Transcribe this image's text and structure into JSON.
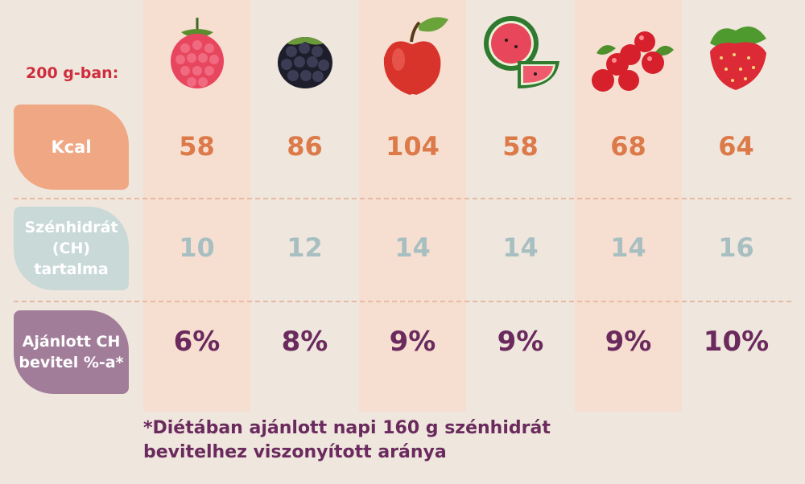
{
  "per_label": "200 g-ban:",
  "row_labels": {
    "kcal": "Kcal",
    "ch": "Szénhidrát\n(CH)\ntartalma",
    "pct": "Ajánlott CH\nbevitel %-a*"
  },
  "colors": {
    "kcal": "#dc7a49",
    "ch": "#a8bfc2",
    "pct": "#6a2a5d",
    "kcal_box": "#f0a884",
    "ch_box": "#c9d9d8",
    "pct_box": "#a27d9a",
    "highlight_column": "#f6dfd1",
    "background": "#efe6dd"
  },
  "fruits": [
    {
      "icon": "raspberry-icon",
      "kcal": "58",
      "ch": "10",
      "pct": "6%"
    },
    {
      "icon": "blackberry-icon",
      "kcal": "86",
      "ch": "12",
      "pct": "8%"
    },
    {
      "icon": "apple-icon",
      "kcal": "104",
      "ch": "14",
      "pct": "9%"
    },
    {
      "icon": "watermelon-icon",
      "kcal": "58",
      "ch": "14",
      "pct": "9%"
    },
    {
      "icon": "red-currant-icon",
      "kcal": "68",
      "ch": "14",
      "pct": "9%"
    },
    {
      "icon": "strawberry-icon",
      "kcal": "64",
      "ch": "16",
      "pct": "10%"
    }
  ],
  "footnote": "*Diétában ajánlott napi 160 g szénhidrát\n bevitelhez viszonyított aránya"
}
